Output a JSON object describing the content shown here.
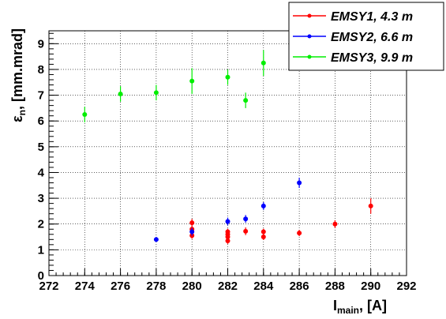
{
  "chart_data": {
    "type": "scatter",
    "title": "",
    "xlabel": {
      "main": "I",
      "sub": "main",
      "unit": ", [A]"
    },
    "ylabel": {
      "main": "ε",
      "sub": "n",
      "unit": ", [mm.mrad]"
    },
    "xlim": [
      272,
      292
    ],
    "ylim": [
      0,
      9.5
    ],
    "xticks": [
      272,
      274,
      276,
      278,
      280,
      282,
      284,
      286,
      288,
      290,
      292
    ],
    "yticks": [
      0,
      1,
      2,
      3,
      4,
      5,
      6,
      7,
      8,
      9
    ],
    "grid": true,
    "legend_position": "top-right",
    "error_bars": true,
    "series": [
      {
        "name": "EMSY1, 4.3 m",
        "color": "#ff0000",
        "points": [
          {
            "x": 280,
            "y": 2.05,
            "err": 0.15
          },
          {
            "x": 280,
            "y": 1.8,
            "err": 0.12
          },
          {
            "x": 280,
            "y": 1.55,
            "err": 0.12
          },
          {
            "x": 282,
            "y": 1.7,
            "err": 0.12
          },
          {
            "x": 282,
            "y": 1.6,
            "err": 0.12
          },
          {
            "x": 282,
            "y": 1.5,
            "err": 0.12
          },
          {
            "x": 282,
            "y": 1.35,
            "err": 0.12
          },
          {
            "x": 283,
            "y": 1.72,
            "err": 0.15
          },
          {
            "x": 284,
            "y": 1.7,
            "err": 0.12
          },
          {
            "x": 284,
            "y": 1.5,
            "err": 0.12
          },
          {
            "x": 286,
            "y": 1.65,
            "err": 0.12
          },
          {
            "x": 288,
            "y": 2.0,
            "err": 0.15
          },
          {
            "x": 290,
            "y": 2.7,
            "err": 0.3
          }
        ]
      },
      {
        "name": "EMSY2, 6.6 m",
        "color": "#0000ff",
        "points": [
          {
            "x": 278,
            "y": 1.4,
            "err": 0.1
          },
          {
            "x": 280,
            "y": 1.7,
            "err": 0.15
          },
          {
            "x": 282,
            "y": 2.1,
            "err": 0.15
          },
          {
            "x": 283,
            "y": 2.2,
            "err": 0.15
          },
          {
            "x": 284,
            "y": 2.7,
            "err": 0.15
          },
          {
            "x": 286,
            "y": 3.6,
            "err": 0.2
          }
        ]
      },
      {
        "name": "EMSY3, 9.9 m",
        "color": "#00ee00",
        "points": [
          {
            "x": 274,
            "y": 6.25,
            "err": 0.3
          },
          {
            "x": 276,
            "y": 7.05,
            "err": 0.3
          },
          {
            "x": 278,
            "y": 7.1,
            "err": 0.3
          },
          {
            "x": 280,
            "y": 7.55,
            "err": 0.5
          },
          {
            "x": 282,
            "y": 7.7,
            "err": 0.3
          },
          {
            "x": 283,
            "y": 6.8,
            "err": 0.3
          },
          {
            "x": 284,
            "y": 8.25,
            "err": 0.5
          }
        ]
      }
    ]
  }
}
